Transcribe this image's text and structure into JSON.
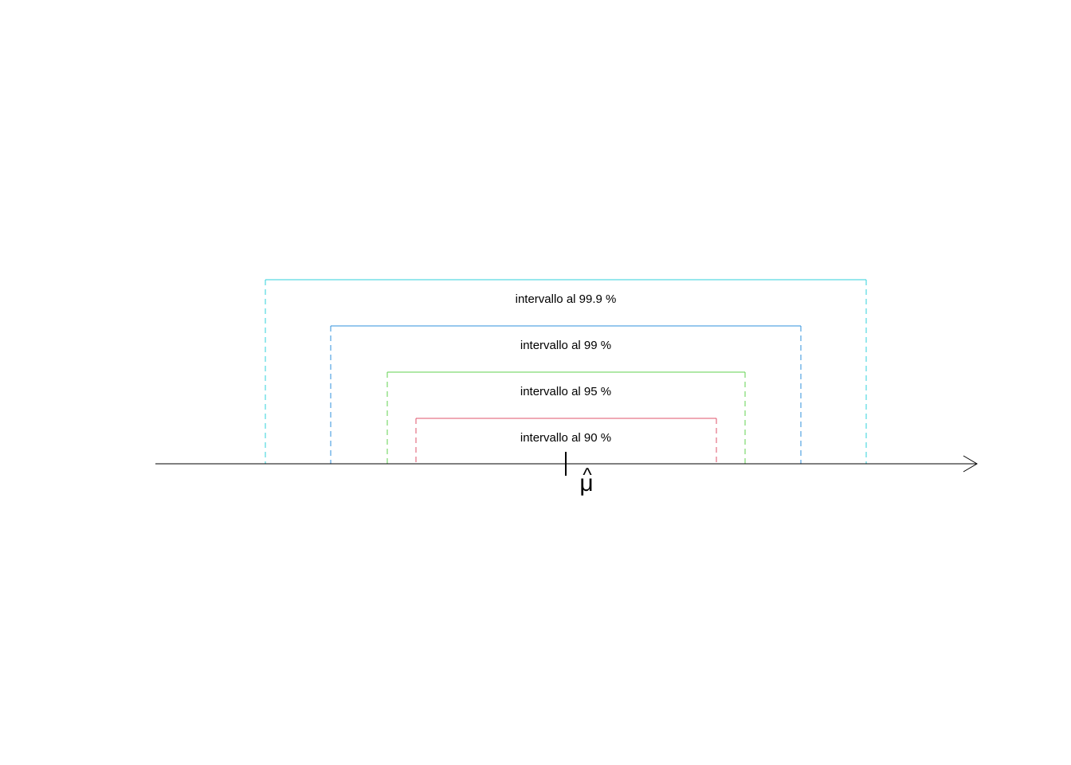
{
  "diagram": {
    "estimator_symbol": "μ",
    "estimator_hat": "^",
    "axis_color": "#000000",
    "intervals": [
      {
        "label": "intervallo al 99.9 %",
        "confidence": 99.9,
        "color": "#2fd0db"
      },
      {
        "label": "intervallo al 99 %",
        "confidence": 99,
        "color": "#2f90dc"
      },
      {
        "label": "intervallo al 95 %",
        "confidence": 95,
        "color": "#61d04f"
      },
      {
        "label": "intervallo al 90 %",
        "confidence": 90,
        "color": "#df536b"
      }
    ]
  }
}
